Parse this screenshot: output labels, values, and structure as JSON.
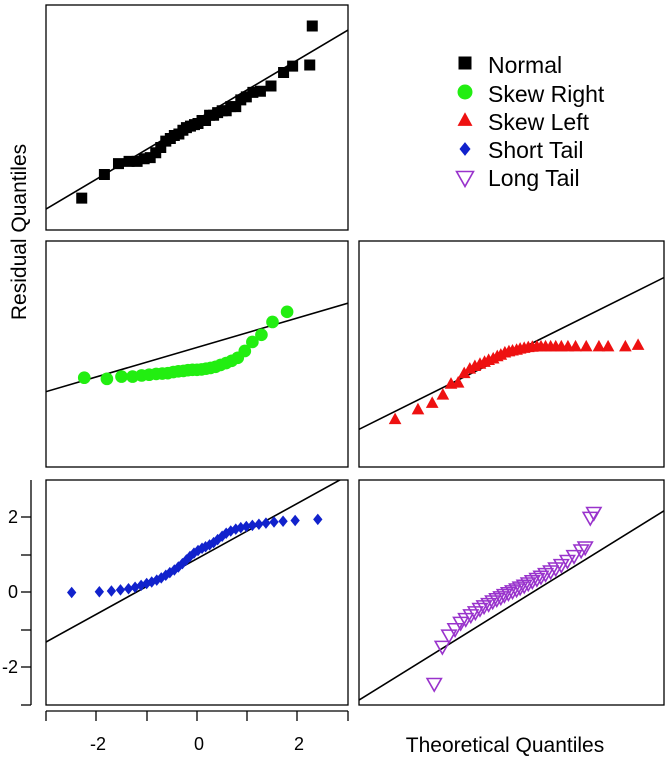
{
  "chart_data": {
    "type": "scatter",
    "ylabel": "Residual  Quantiles",
    "xlabel": "Theoretical Quantiles",
    "x_ticks": [
      "-2",
      "0",
      "2"
    ],
    "y_ticks": [
      "2",
      "0",
      "-2"
    ],
    "xlim": [
      -3.0,
      3.0
    ],
    "ylim": [
      -3.0,
      3.0
    ],
    "grid": false,
    "legend_position": "top-right",
    "legend": [
      {
        "label": "Normal",
        "marker": "square",
        "color": "#000000"
      },
      {
        "label": "Skew Right",
        "marker": "circle",
        "color": "#22ee11"
      },
      {
        "label": "Skew Left",
        "marker": "triangle",
        "color": "#ee1111"
      },
      {
        "label": "Short Tail",
        "marker": "diamond",
        "color": "#1122cc"
      },
      {
        "label": "Long Tail",
        "marker": "triangle-down-open",
        "color": "#9933cc"
      }
    ],
    "panels": [
      {
        "series": "Normal",
        "ref_line": [
          [
            -3.0,
            -2.44
          ],
          [
            3.0,
            2.33
          ]
        ],
        "points": [
          [
            -2.29,
            -2.15
          ],
          [
            -1.84,
            -1.52
          ],
          [
            -1.56,
            -1.23
          ],
          [
            -1.35,
            -1.17
          ],
          [
            -1.19,
            -1.17
          ],
          [
            -1.05,
            -1.1
          ],
          [
            -0.93,
            -1.07
          ],
          [
            -0.82,
            -0.94
          ],
          [
            -0.72,
            -0.8
          ],
          [
            -0.62,
            -0.63
          ],
          [
            -0.53,
            -0.56
          ],
          [
            -0.45,
            -0.48
          ],
          [
            -0.36,
            -0.44
          ],
          [
            -0.28,
            -0.34
          ],
          [
            -0.21,
            -0.27
          ],
          [
            -0.13,
            -0.23
          ],
          [
            -0.05,
            -0.19
          ],
          [
            0.02,
            -0.16
          ],
          [
            0.1,
            -0.08
          ],
          [
            0.17,
            -0.08
          ],
          [
            0.25,
            0.06
          ],
          [
            0.33,
            0.06
          ],
          [
            0.41,
            0.13
          ],
          [
            0.5,
            0.18
          ],
          [
            0.58,
            0.18
          ],
          [
            0.67,
            0.29
          ],
          [
            0.77,
            0.29
          ],
          [
            0.87,
            0.47
          ],
          [
            0.98,
            0.55
          ],
          [
            1.11,
            0.67
          ],
          [
            1.26,
            0.7
          ],
          [
            1.47,
            0.84
          ],
          [
            1.72,
            1.2
          ],
          [
            1.9,
            1.37
          ],
          [
            2.24,
            1.4
          ],
          [
            2.29,
            2.44
          ]
        ]
      },
      {
        "series": "Skew Right",
        "ref_line": [
          [
            -3.0,
            -1.0
          ],
          [
            3.0,
            1.35
          ]
        ],
        "points": [
          [
            -2.24,
            -0.63
          ],
          [
            -1.79,
            -0.66
          ],
          [
            -1.5,
            -0.6
          ],
          [
            -1.28,
            -0.6
          ],
          [
            -1.1,
            -0.57
          ],
          [
            -0.95,
            -0.55
          ],
          [
            -0.81,
            -0.53
          ],
          [
            -0.69,
            -0.52
          ],
          [
            -0.58,
            -0.51
          ],
          [
            -0.47,
            -0.48
          ],
          [
            -0.37,
            -0.46
          ],
          [
            -0.27,
            -0.45
          ],
          [
            -0.18,
            -0.43
          ],
          [
            -0.09,
            -0.42
          ],
          [
            0.0,
            -0.42
          ],
          [
            0.09,
            -0.41
          ],
          [
            0.18,
            -0.39
          ],
          [
            0.27,
            -0.37
          ],
          [
            0.37,
            -0.34
          ],
          [
            0.47,
            -0.29
          ],
          [
            0.58,
            -0.24
          ],
          [
            0.69,
            -0.18
          ],
          [
            0.81,
            -0.1
          ],
          [
            0.95,
            0.08
          ],
          [
            1.1,
            0.32
          ],
          [
            1.28,
            0.51
          ],
          [
            1.5,
            0.85
          ],
          [
            1.79,
            1.12
          ]
        ]
      },
      {
        "series": "Skew Left",
        "ref_line": [
          [
            -3.0,
            -2.0
          ],
          [
            3.0,
            2.03
          ]
        ],
        "points": [
          [
            -2.29,
            -1.73
          ],
          [
            -1.84,
            -1.47
          ],
          [
            -1.56,
            -1.3
          ],
          [
            -1.35,
            -1.08
          ],
          [
            -1.19,
            -0.79
          ],
          [
            -1.05,
            -0.76
          ],
          [
            -0.93,
            -0.51
          ],
          [
            -0.82,
            -0.39
          ],
          [
            -0.72,
            -0.32
          ],
          [
            -0.62,
            -0.26
          ],
          [
            -0.53,
            -0.21
          ],
          [
            -0.45,
            -0.16
          ],
          [
            -0.36,
            -0.12
          ],
          [
            -0.28,
            -0.06
          ],
          [
            -0.21,
            -0.02
          ],
          [
            -0.13,
            0.04
          ],
          [
            -0.05,
            0.07
          ],
          [
            0.02,
            0.09
          ],
          [
            0.1,
            0.11
          ],
          [
            0.17,
            0.14
          ],
          [
            0.25,
            0.16
          ],
          [
            0.33,
            0.18
          ],
          [
            0.41,
            0.19
          ],
          [
            0.5,
            0.2
          ],
          [
            0.58,
            0.2
          ],
          [
            0.67,
            0.2
          ],
          [
            0.77,
            0.2
          ],
          [
            0.87,
            0.2
          ],
          [
            0.98,
            0.2
          ],
          [
            1.11,
            0.2
          ],
          [
            1.26,
            0.2
          ],
          [
            1.47,
            0.2
          ],
          [
            1.72,
            0.2
          ],
          [
            1.9,
            0.2
          ],
          [
            2.24,
            0.2
          ],
          [
            2.49,
            0.24
          ]
        ]
      },
      {
        "series": "Short Tail",
        "ref_line": [
          [
            -3.0,
            -1.32
          ],
          [
            3.0,
            3.12
          ]
        ],
        "points": [
          [
            -2.49,
            0.0
          ],
          [
            -1.94,
            0.02
          ],
          [
            -1.7,
            0.04
          ],
          [
            -1.52,
            0.07
          ],
          [
            -1.36,
            0.1
          ],
          [
            -1.23,
            0.14
          ],
          [
            -1.11,
            0.19
          ],
          [
            -1.0,
            0.24
          ],
          [
            -0.9,
            0.28
          ],
          [
            -0.8,
            0.33
          ],
          [
            -0.71,
            0.39
          ],
          [
            -0.62,
            0.46
          ],
          [
            -0.54,
            0.53
          ],
          [
            -0.45,
            0.6
          ],
          [
            -0.37,
            0.68
          ],
          [
            -0.29,
            0.77
          ],
          [
            -0.21,
            0.87
          ],
          [
            -0.14,
            0.96
          ],
          [
            -0.06,
            1.05
          ],
          [
            0.02,
            1.12
          ],
          [
            0.1,
            1.18
          ],
          [
            0.17,
            1.22
          ],
          [
            0.25,
            1.27
          ],
          [
            0.33,
            1.33
          ],
          [
            0.41,
            1.41
          ],
          [
            0.5,
            1.5
          ],
          [
            0.58,
            1.58
          ],
          [
            0.67,
            1.64
          ],
          [
            0.77,
            1.69
          ],
          [
            0.87,
            1.73
          ],
          [
            0.98,
            1.76
          ],
          [
            1.1,
            1.79
          ],
          [
            1.23,
            1.82
          ],
          [
            1.37,
            1.85
          ],
          [
            1.53,
            1.88
          ],
          [
            1.71,
            1.9
          ],
          [
            1.95,
            1.92
          ],
          [
            2.4,
            1.95
          ]
        ]
      },
      {
        "series": "Long Tail",
        "ref_line": [
          [
            -3.0,
            -2.87
          ],
          [
            3.0,
            2.18
          ]
        ],
        "points": [
          [
            -1.52,
            -2.44
          ],
          [
            -1.36,
            -1.45
          ],
          [
            -1.23,
            -1.15
          ],
          [
            -1.11,
            -0.98
          ],
          [
            -1.0,
            -0.81
          ],
          [
            -0.9,
            -0.71
          ],
          [
            -0.8,
            -0.61
          ],
          [
            -0.71,
            -0.53
          ],
          [
            -0.62,
            -0.44
          ],
          [
            -0.54,
            -0.37
          ],
          [
            -0.45,
            -0.31
          ],
          [
            -0.37,
            -0.24
          ],
          [
            -0.29,
            -0.18
          ],
          [
            -0.21,
            -0.13
          ],
          [
            -0.14,
            -0.07
          ],
          [
            -0.06,
            -0.02
          ],
          [
            0.02,
            0.03
          ],
          [
            0.1,
            0.08
          ],
          [
            0.17,
            0.13
          ],
          [
            0.25,
            0.18
          ],
          [
            0.33,
            0.24
          ],
          [
            0.41,
            0.3
          ],
          [
            0.5,
            0.36
          ],
          [
            0.58,
            0.42
          ],
          [
            0.67,
            0.49
          ],
          [
            0.77,
            0.56
          ],
          [
            0.87,
            0.64
          ],
          [
            0.98,
            0.73
          ],
          [
            1.1,
            0.84
          ],
          [
            1.23,
            0.97
          ],
          [
            1.37,
            1.12
          ],
          [
            1.45,
            1.2
          ],
          [
            1.55,
            1.99
          ],
          [
            1.62,
            2.12
          ]
        ]
      }
    ]
  }
}
